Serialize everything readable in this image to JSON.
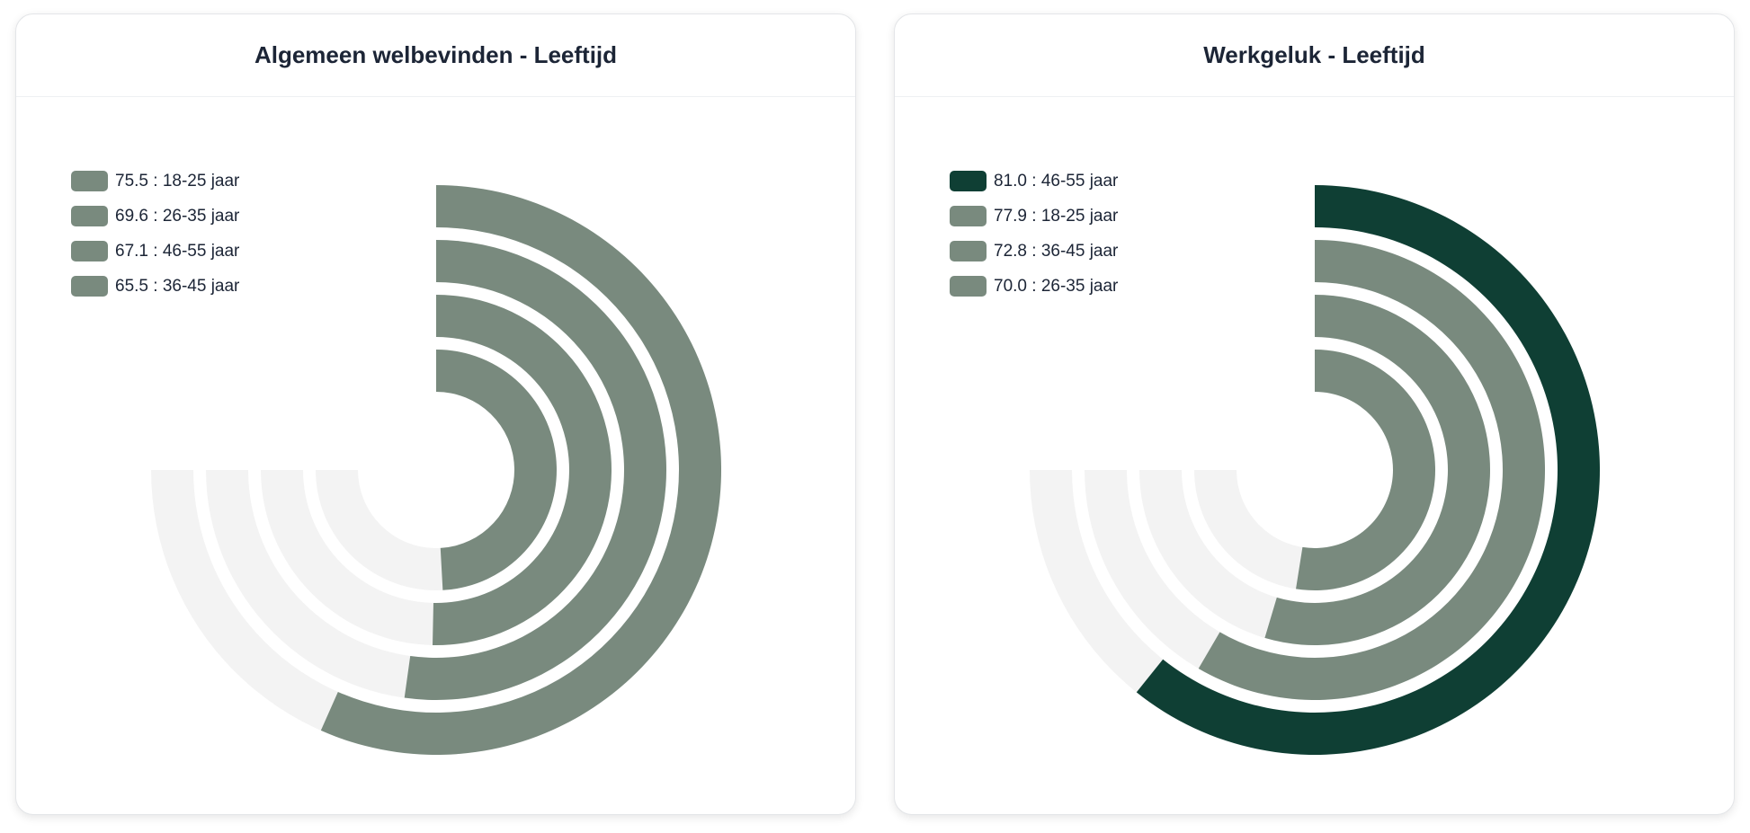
{
  "colors": {
    "track": "#f3f3f3",
    "series_default": "#798a7e",
    "series_highlight": "#0f3f34"
  },
  "chart_data": [
    {
      "type": "radial-bar",
      "title": "Algemeen welbevinden - Leeftijd",
      "max": 100,
      "arc_degrees": 270,
      "legend_position": "top-left",
      "legend": [
        {
          "value": "75.5",
          "label": "18-25 jaar",
          "text": "75.5 : 18-25 jaar"
        },
        {
          "value": "69.6",
          "label": "26-35 jaar",
          "text": "69.6 : 26-35 jaar"
        },
        {
          "value": "67.1",
          "label": "46-55 jaar",
          "text": "67.1 : 46-55 jaar"
        },
        {
          "value": "65.5",
          "label": "36-45 jaar",
          "text": "65.5 : 36-45 jaar"
        }
      ],
      "highlight_index": -1
    },
    {
      "type": "radial-bar",
      "title": "Werkgeluk - Leeftijd",
      "max": 100,
      "arc_degrees": 270,
      "legend_position": "top-left",
      "legend": [
        {
          "value": "81.0",
          "label": "46-55 jaar",
          "text": "81.0 : 46-55 jaar"
        },
        {
          "value": "77.9",
          "label": "18-25 jaar",
          "text": "77.9 : 18-25 jaar"
        },
        {
          "value": "72.8",
          "label": "36-45 jaar",
          "text": "72.8 : 36-45 jaar"
        },
        {
          "value": "70.0",
          "label": "26-35 jaar",
          "text": "70.0 : 26-35 jaar"
        }
      ],
      "highlight_index": 0
    }
  ]
}
